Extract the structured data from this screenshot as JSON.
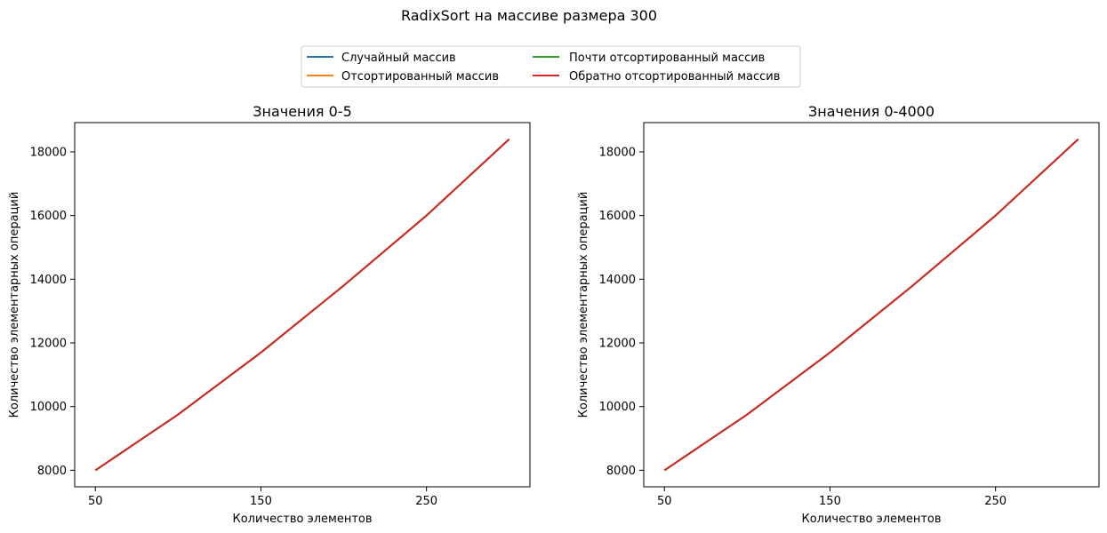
{
  "figure_title": "RadixSort на массиве размера 300",
  "legend": {
    "placement": "top-center",
    "columns": 2,
    "entries": [
      {
        "label": "Случайный массив",
        "color": "#1f77b4"
      },
      {
        "label": "Отсортированный массив",
        "color": "#ff7f0e"
      },
      {
        "label": "Почти отсортированный массив",
        "color": "#2ca02c"
      },
      {
        "label": "Обратно отсортированный массив",
        "color": "#d62728"
      }
    ]
  },
  "chart_data": [
    {
      "type": "line",
      "title": "Значения 0-5",
      "xlabel": "Количество элементов",
      "ylabel": "Количество элементарных операций",
      "x": [
        50,
        100,
        150,
        200,
        250,
        300
      ],
      "xticks": [
        50,
        150,
        250
      ],
      "yticks": [
        8000,
        10000,
        12000,
        14000,
        16000,
        18000
      ],
      "xlim": [
        37.5,
        312.5
      ],
      "ylim": [
        7480,
        18920
      ],
      "grid": false,
      "series": [
        {
          "name": "Случайный массив",
          "color": "#1f77b4",
          "values": [
            8000,
            9750,
            11700,
            13800,
            16000,
            18400
          ]
        },
        {
          "name": "Отсортированный массив",
          "color": "#ff7f0e",
          "values": [
            8000,
            9750,
            11700,
            13800,
            16000,
            18400
          ]
        },
        {
          "name": "Почти отсортированный массив",
          "color": "#2ca02c",
          "values": [
            8000,
            9750,
            11700,
            13800,
            16000,
            18400
          ]
        },
        {
          "name": "Обратно отсортированный массив",
          "color": "#d62728",
          "values": [
            8000,
            9750,
            11700,
            13800,
            16000,
            18400
          ]
        }
      ]
    },
    {
      "type": "line",
      "title": "Значения 0-4000",
      "xlabel": "Количество элементов",
      "ylabel": "Количество элементарных операций",
      "x": [
        50,
        100,
        150,
        200,
        250,
        300
      ],
      "xticks": [
        50,
        150,
        250
      ],
      "yticks": [
        8000,
        10000,
        12000,
        14000,
        16000,
        18000
      ],
      "xlim": [
        37.5,
        312.5
      ],
      "ylim": [
        7480,
        18920
      ],
      "grid": false,
      "series": [
        {
          "name": "Случайный массив",
          "color": "#1f77b4",
          "values": [
            8000,
            9750,
            11700,
            13800,
            16000,
            18400
          ]
        },
        {
          "name": "Отсортированный массив",
          "color": "#ff7f0e",
          "values": [
            8000,
            9750,
            11700,
            13800,
            16000,
            18400
          ]
        },
        {
          "name": "Почти отсортированный массив",
          "color": "#2ca02c",
          "values": [
            8000,
            9750,
            11700,
            13800,
            16000,
            18400
          ]
        },
        {
          "name": "Обратно отсортированный массив",
          "color": "#d62728",
          "values": [
            8000,
            9750,
            11700,
            13800,
            16000,
            18400
          ]
        }
      ]
    }
  ]
}
